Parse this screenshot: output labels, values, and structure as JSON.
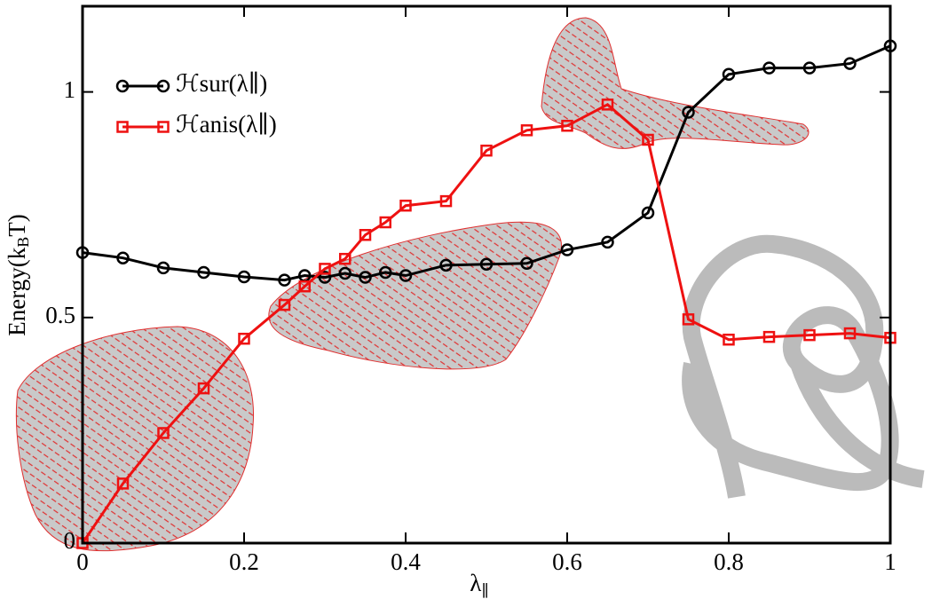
{
  "chart_data": {
    "type": "line",
    "y_label": [
      "Energy(k",
      "B",
      "T)"
    ],
    "x_label": [
      "λ",
      "∥"
    ],
    "x": [
      0,
      0.05,
      0.1,
      0.15,
      0.2,
      0.25,
      0.275,
      0.3,
      0.325,
      0.35,
      0.375,
      0.4,
      0.45,
      0.5,
      0.55,
      0.6,
      0.65,
      0.7,
      0.75,
      0.8,
      0.85,
      0.9,
      0.95,
      1
    ],
    "series": [
      {
        "name": "ℋsur(λ∥)",
        "color": "#000000",
        "marker": "circle",
        "values": [
          0.644,
          0.632,
          0.61,
          0.6,
          0.59,
          0.583,
          0.593,
          0.589,
          0.598,
          0.589,
          0.6,
          0.593,
          0.616,
          0.618,
          0.62,
          0.65,
          0.667,
          0.732,
          0.955,
          1.039,
          1.053,
          1.053,
          1.063,
          1.102
        ]
      },
      {
        "name": "ℋanis(λ∥)",
        "color": "#ee1111",
        "marker": "square",
        "values": [
          0.0,
          0.132,
          0.244,
          0.343,
          0.453,
          0.528,
          0.569,
          0.608,
          0.63,
          0.683,
          0.711,
          0.748,
          0.758,
          0.87,
          0.915,
          0.925,
          0.972,
          0.894,
          0.496,
          0.451,
          0.457,
          0.461,
          0.465,
          0.455
        ]
      }
    ],
    "xlim": [
      0,
      1
    ],
    "ylim": [
      0,
      1.19
    ],
    "xticks": [
      0,
      0.2,
      0.4,
      0.6,
      0.8,
      1
    ],
    "yticks": [
      0,
      0.5,
      1
    ],
    "legend": "upper left"
  }
}
